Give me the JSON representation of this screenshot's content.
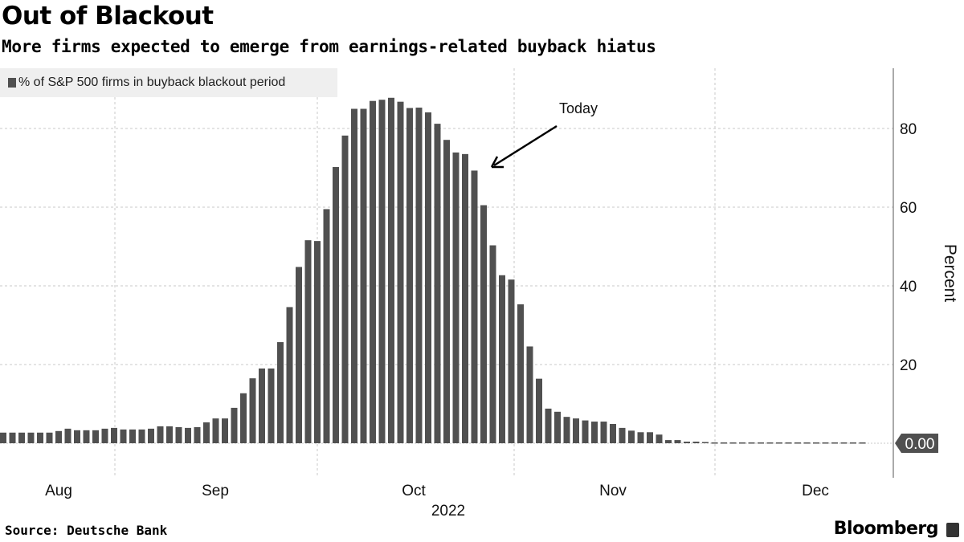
{
  "header": {
    "title": "Out of Blackout",
    "subtitle": "More firms expected to emerge from earnings-related buyback hiatus"
  },
  "footer": {
    "source": "Source: Deutsche Bank",
    "brand": "Bloomberg"
  },
  "colors": {
    "bar": "#505050",
    "grid": "#c8c8c8",
    "label_box": "#505050"
  },
  "chart_data": {
    "type": "bar",
    "title": "Out of Blackout",
    "legend": [
      "% of S&P 500 firms in buyback blackout period"
    ],
    "legend_placement": "top-left",
    "ylabel": "Percent",
    "xlabel": "2022",
    "ylim": [
      -8,
      93
    ],
    "yticks": [
      20,
      40,
      60,
      80
    ],
    "xticks": [
      "Aug",
      "Sep",
      "Oct",
      "Nov",
      "Dec"
    ],
    "year_label": "2022",
    "last_value_label": "0.00",
    "annotation": "Today",
    "annotation_index": 50,
    "values": [
      2.7,
      2.7,
      2.7,
      2.7,
      2.7,
      2.7,
      3.1,
      3.7,
      3.3,
      3.3,
      3.3,
      3.7,
      3.9,
      3.5,
      3.5,
      3.5,
      3.7,
      4.3,
      4.3,
      4.1,
      3.9,
      4.1,
      5.3,
      6.3,
      6.3,
      9.0,
      12.7,
      16.5,
      19.0,
      19.0,
      25.7,
      34.6,
      44.8,
      51.6,
      51.4,
      59.5,
      70.2,
      78.2,
      85.0,
      85.0,
      87.0,
      87.3,
      87.8,
      86.8,
      85.2,
      85.3,
      84.1,
      81.2,
      77.1,
      73.9,
      73.5,
      69.3,
      60.5,
      50.3,
      42.7,
      41.6,
      35.3,
      24.6,
      16.4,
      8.8,
      8.0,
      6.7,
      6.3,
      5.8,
      5.5,
      5.5,
      4.9,
      3.9,
      3.2,
      2.8,
      2.8,
      2.2,
      0.8,
      0.8,
      0.4,
      0.4,
      0.2,
      0,
      0,
      0,
      0,
      0,
      0,
      0,
      0,
      0,
      0,
      0,
      0,
      0,
      0,
      0,
      0,
      0
    ]
  }
}
